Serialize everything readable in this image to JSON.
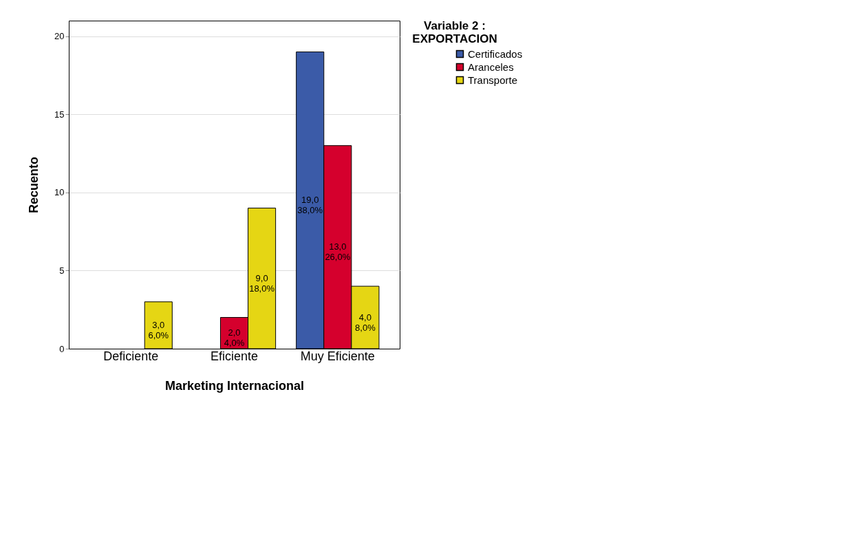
{
  "chart_data": {
    "type": "bar",
    "xlabel": "Marketing Internacional",
    "ylabel": "Recuento",
    "legend_title": "Variable 2 :\nEXPORTACION",
    "categories": [
      "Deficiente",
      "Eficiente",
      "Muy Eficiente"
    ],
    "series": [
      {
        "name": "Certificados",
        "color": "#3b5ba8",
        "values": [
          null,
          null,
          19
        ],
        "value_labels": [
          null,
          null,
          "19,0\n38,0%"
        ]
      },
      {
        "name": "Aranceles",
        "color": "#d5002d",
        "values": [
          null,
          2,
          13
        ],
        "value_labels": [
          null,
          "2,0\n4,0%",
          "13,0\n26,0%"
        ]
      },
      {
        "name": "Transporte",
        "color": "#e5d614",
        "values": [
          3,
          9,
          4
        ],
        "value_labels": [
          "3,0\n6,0%",
          "9,0\n18,0%",
          "4,0\n8,0%"
        ]
      }
    ],
    "ylim": [
      0,
      21
    ],
    "yticks": [
      0,
      5,
      10,
      15,
      20
    ],
    "grid": "y",
    "legend": "right"
  }
}
